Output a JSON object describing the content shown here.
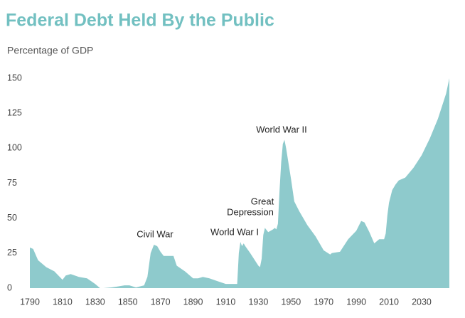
{
  "chart_data": {
    "type": "area",
    "title": "Federal Debt Held By the Public",
    "subtitle": "Percentage of GDP",
    "x": [
      1790,
      1792,
      1795,
      1800,
      1805,
      1810,
      1812,
      1815,
      1820,
      1825,
      1830,
      1833,
      1835,
      1840,
      1843,
      1848,
      1851,
      1855,
      1860,
      1862,
      1864,
      1866,
      1868,
      1870,
      1872,
      1875,
      1878,
      1880,
      1885,
      1890,
      1893,
      1896,
      1900,
      1905,
      1910,
      1916,
      1917,
      1918,
      1919,
      1920,
      1921,
      1922,
      1925,
      1930,
      1931,
      1932,
      1933,
      1934,
      1936,
      1939,
      1940,
      1941,
      1942,
      1943,
      1944,
      1945,
      1946,
      1947,
      1950,
      1952,
      1955,
      1960,
      1965,
      1970,
      1974,
      1975,
      1980,
      1985,
      1990,
      1993,
      1995,
      1998,
      2001,
      2004,
      2007,
      2008,
      2009,
      2010,
      2012,
      2014,
      2016,
      2020,
      2025,
      2030,
      2035,
      2040,
      2045,
      2047
    ],
    "values": [
      29,
      28,
      20,
      15,
      12,
      6,
      9,
      10,
      8,
      7,
      3,
      0,
      0,
      0.5,
      1,
      2,
      2,
      0.5,
      2,
      8,
      25,
      31,
      30,
      26,
      23,
      23,
      23,
      16,
      12,
      7,
      7,
      8,
      7,
      5,
      3,
      3,
      3,
      25,
      33,
      30,
      32,
      30,
      25,
      16,
      15,
      21,
      38,
      43,
      40,
      42,
      43,
      42,
      46,
      70,
      90,
      103,
      106,
      100,
      78,
      62,
      55,
      45,
      37,
      27,
      24,
      25,
      26,
      35,
      41,
      48,
      47,
      40,
      32,
      35,
      35,
      39,
      52,
      61,
      70,
      74,
      77,
      79,
      86,
      95,
      107,
      121,
      139,
      150
    ],
    "color": "#8ecacc",
    "title_color": "#72c0c1",
    "xlim": [
      1790,
      2047
    ],
    "ylim": [
      0,
      150
    ],
    "xticks": [
      1790,
      1810,
      1830,
      1850,
      1870,
      1890,
      1910,
      1930,
      1950,
      1970,
      1990,
      2010,
      2030
    ],
    "yticks": [
      0,
      25,
      50,
      75,
      100,
      125,
      150
    ],
    "grid": false,
    "annotations": [
      [
        "Civil War"
      ],
      [
        "World War I"
      ],
      [
        "Great",
        "Depression"
      ],
      [
        "World War II"
      ]
    ]
  }
}
